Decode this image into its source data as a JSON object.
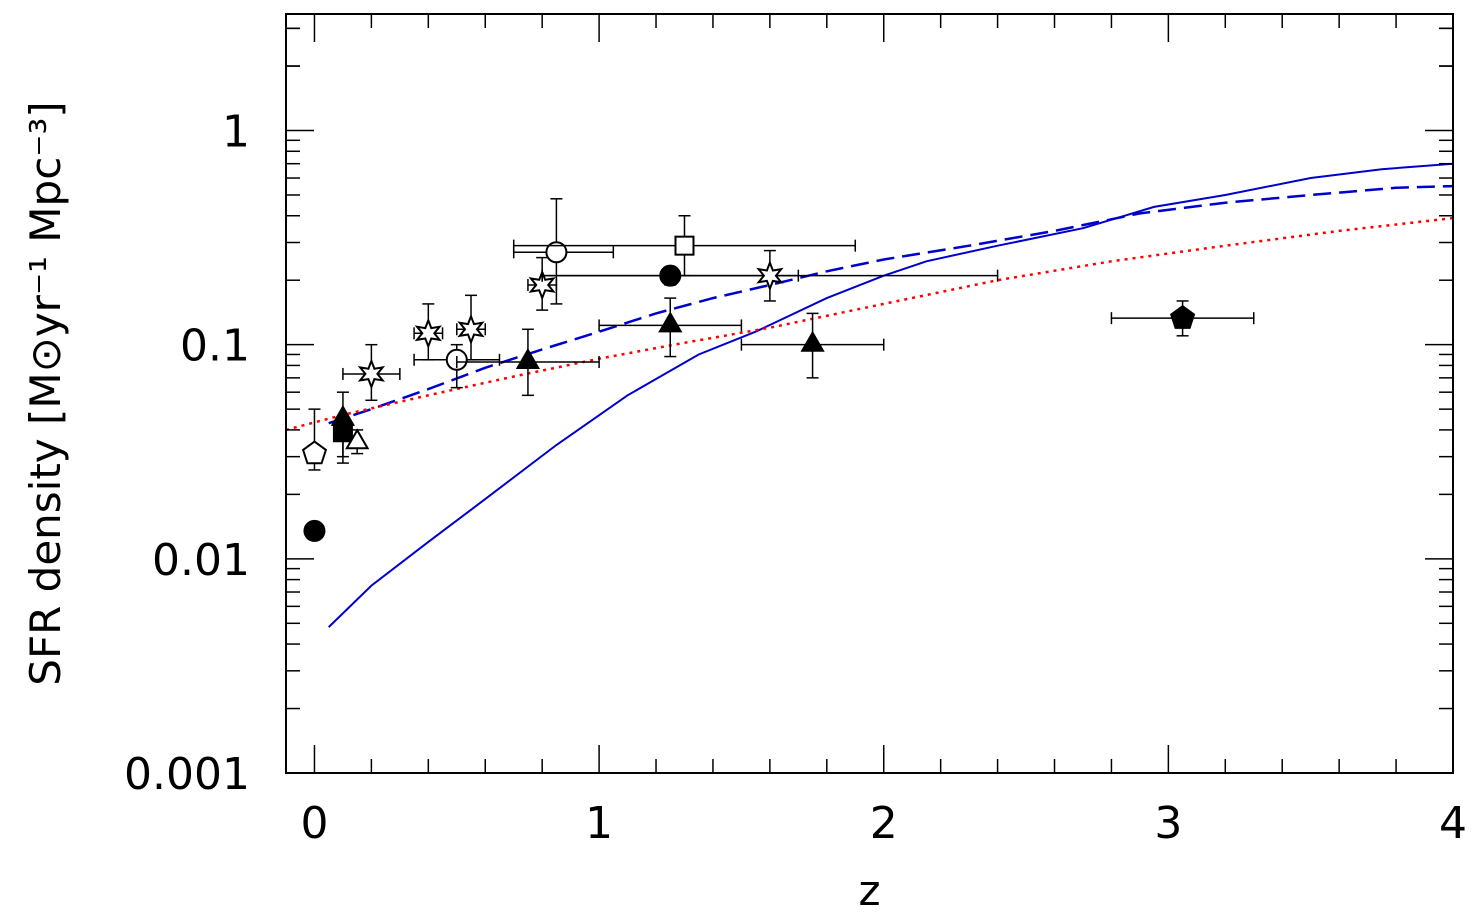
{
  "chart_data": {
    "type": "scatter",
    "title": "",
    "xlabel": "z",
    "ylabel": "SFR density [M⊙yr⁻¹ Mpc⁻³]",
    "xlim": [
      -0.1,
      4.0
    ],
    "ylim": [
      0.001,
      3.5
    ],
    "yscale": "log",
    "grid": false,
    "x_ticks": [
      {
        "value": 0,
        "label": "0"
      },
      {
        "value": 1,
        "label": "1"
      },
      {
        "value": 2,
        "label": "2"
      },
      {
        "value": 3,
        "label": "3"
      },
      {
        "value": 4,
        "label": "4"
      }
    ],
    "y_ticks": [
      {
        "value": 0.001,
        "label": "0.001"
      },
      {
        "value": 0.01,
        "label": "0.01"
      },
      {
        "value": 0.1,
        "label": "0.1"
      },
      {
        "value": 1,
        "label": "1"
      }
    ],
    "curves": [
      {
        "style": "solid",
        "color": "#0000cc",
        "x": [
          0.05,
          0.2,
          0.4,
          0.6,
          0.85,
          1.1,
          1.35,
          1.55,
          1.8,
          2.0,
          2.15,
          2.4,
          2.7,
          2.95,
          3.2,
          3.5,
          3.75,
          4.0
        ],
        "y": [
          0.0048,
          0.0075,
          0.012,
          0.019,
          0.034,
          0.058,
          0.09,
          0.115,
          0.165,
          0.21,
          0.245,
          0.29,
          0.35,
          0.44,
          0.5,
          0.6,
          0.66,
          0.7
        ]
      },
      {
        "style": "dashed",
        "color": "#0000cc",
        "x": [
          0.05,
          0.2,
          0.4,
          0.6,
          0.8,
          1.0,
          1.2,
          1.4,
          1.6,
          1.8,
          2.0,
          2.3,
          2.6,
          2.9,
          3.2,
          3.5,
          3.8,
          4.0
        ],
        "y": [
          0.043,
          0.05,
          0.062,
          0.078,
          0.095,
          0.115,
          0.14,
          0.165,
          0.19,
          0.22,
          0.25,
          0.29,
          0.34,
          0.41,
          0.46,
          0.5,
          0.54,
          0.55
        ]
      },
      {
        "style": "dotted",
        "color": "#ff0000",
        "x": [
          -0.1,
          0.1,
          0.4,
          0.7,
          1.0,
          1.3,
          1.6,
          2.0,
          2.4,
          2.8,
          3.2,
          3.6,
          4.0
        ],
        "y": [
          0.04,
          0.047,
          0.058,
          0.071,
          0.086,
          0.102,
          0.12,
          0.155,
          0.2,
          0.245,
          0.29,
          0.34,
          0.39
        ]
      }
    ],
    "points": [
      {
        "marker": "filled-circle",
        "x": 0.0,
        "y": 0.0135
      },
      {
        "marker": "open-pentagon",
        "x": 0.0,
        "y": 0.031,
        "ylo": 0.026,
        "yhi": 0.05
      },
      {
        "marker": "filled-square",
        "x": 0.1,
        "y": 0.039,
        "ylo": 0.03,
        "yhi": 0.045
      },
      {
        "marker": "open-triangle",
        "x": 0.15,
        "y": 0.035,
        "ylo": 0.031,
        "yhi": 0.04
      },
      {
        "marker": "filled-triangle",
        "x": 0.1,
        "y": 0.045,
        "ylo": 0.028,
        "yhi": 0.06
      },
      {
        "marker": "open-star",
        "x": 0.2,
        "y": 0.073,
        "xlo": 0.1,
        "xhi": 0.3,
        "ylo": 0.055,
        "yhi": 0.1
      },
      {
        "marker": "open-star",
        "x": 0.4,
        "y": 0.113,
        "xlo": 0.35,
        "xhi": 0.45,
        "ylo": 0.085,
        "yhi": 0.155
      },
      {
        "marker": "open-star",
        "x": 0.55,
        "y": 0.118,
        "xlo": 0.5,
        "xhi": 0.6,
        "ylo": 0.085,
        "yhi": 0.17
      },
      {
        "marker": "open-circle",
        "x": 0.5,
        "y": 0.085,
        "xlo": 0.35,
        "xhi": 0.65,
        "ylo": 0.063,
        "yhi": 0.1
      },
      {
        "marker": "filled-triangle",
        "x": 0.75,
        "y": 0.083,
        "xlo": 0.5,
        "xhi": 1.0,
        "ylo": 0.058,
        "yhi": 0.118
      },
      {
        "marker": "open-star",
        "x": 0.8,
        "y": 0.19,
        "xlo": 0.75,
        "xhi": 0.85,
        "ylo": 0.145,
        "yhi": 0.255
      },
      {
        "marker": "open-circle",
        "x": 0.85,
        "y": 0.27,
        "xlo": 0.7,
        "xhi": 1.05,
        "ylo": 0.155,
        "yhi": 0.48
      },
      {
        "marker": "filled-circle",
        "x": 1.25,
        "y": 0.21,
        "xlo": 0.8,
        "xhi": 1.7,
        "ylo": 0.19,
        "yhi": 0.23
      },
      {
        "marker": "open-square",
        "x": 1.3,
        "y": 0.29,
        "xlo": 0.7,
        "xhi": 1.9,
        "ylo": 0.21,
        "yhi": 0.4
      },
      {
        "marker": "filled-triangle",
        "x": 1.25,
        "y": 0.123,
        "xlo": 1.0,
        "xhi": 1.5,
        "ylo": 0.088,
        "yhi": 0.165
      },
      {
        "marker": "open-star",
        "x": 1.6,
        "y": 0.21,
        "xlo": 0.8,
        "xhi": 2.4,
        "ylo": 0.16,
        "yhi": 0.275
      },
      {
        "marker": "filled-triangle",
        "x": 1.75,
        "y": 0.1,
        "xlo": 1.5,
        "xhi": 2.0,
        "ylo": 0.07,
        "yhi": 0.14
      },
      {
        "marker": "filled-pentagon",
        "x": 3.05,
        "y": 0.133,
        "xlo": 2.8,
        "xhi": 3.3,
        "ylo": 0.11,
        "yhi": 0.16
      }
    ]
  }
}
